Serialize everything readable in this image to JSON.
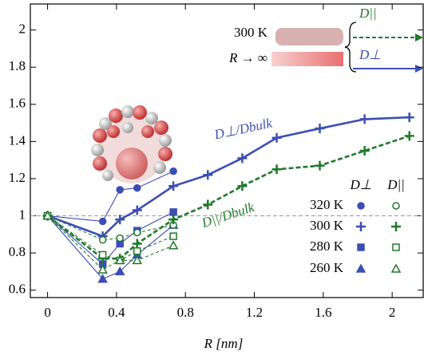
{
  "chart_data": {
    "type": "line",
    "x_label": "R [nm]",
    "xlim": [
      -0.1,
      2.18
    ],
    "ylim": [
      0.56,
      2.14
    ],
    "xticks": [
      0,
      0.4,
      0.8,
      1.2,
      1.6,
      2
    ],
    "yticks": [
      0.6,
      0.8,
      1,
      1.2,
      1.4,
      1.6,
      1.8,
      2
    ],
    "reference_line": 1,
    "legend": {
      "columns": [
        "D⊥",
        "D||"
      ],
      "rows": [
        "320 K",
        "300 K",
        "280 K",
        "260 K"
      ]
    },
    "annotations": {
      "perp": "D⊥/Dbulk",
      "par": "D||/Dbulk",
      "temperature": "300 K",
      "limit": "R → ∞",
      "inset_par": "D||",
      "inset_perp": "D⊥"
    },
    "series": [
      {
        "color": "#3b4fb3",
        "marker": "circle",
        "filled": true,
        "dashed": false,
        "thick": false,
        "x": [
          0,
          0.32,
          0.42,
          0.52,
          0.73
        ],
        "values": [
          1,
          0.97,
          1.14,
          1.15,
          1.24
        ]
      },
      {
        "color": "#3b4fb3",
        "marker": "plus",
        "filled": true,
        "dashed": false,
        "thick": true,
        "x": [
          0,
          0.32,
          0.42,
          0.52,
          0.73,
          0.93,
          1.13,
          1.33,
          1.58,
          1.84,
          2.1
        ],
        "values": [
          1,
          0.89,
          0.98,
          1.03,
          1.16,
          1.22,
          1.31,
          1.42,
          1.47,
          1.52,
          1.53
        ]
      },
      {
        "color": "#3b4fb3",
        "marker": "square",
        "filled": true,
        "dashed": false,
        "thick": false,
        "x": [
          0,
          0.32,
          0.42,
          0.52,
          0.73
        ],
        "values": [
          1,
          0.74,
          0.85,
          0.92,
          1.02
        ]
      },
      {
        "color": "#3b4fb3",
        "marker": "triangle",
        "filled": true,
        "dashed": false,
        "thick": false,
        "x": [
          0,
          0.32,
          0.42,
          0.52,
          0.73
        ],
        "values": [
          1,
          0.66,
          0.7,
          0.79,
          0.95
        ]
      },
      {
        "color": "#1f7a2a",
        "marker": "circle",
        "filled": false,
        "dashed": true,
        "thick": false,
        "x": [
          0,
          0.32,
          0.42,
          0.52,
          0.73
        ],
        "values": [
          1,
          0.87,
          0.88,
          0.91,
          0.95
        ]
      },
      {
        "color": "#1f7a2a",
        "marker": "plus",
        "filled": false,
        "dashed": true,
        "thick": true,
        "x": [
          0,
          0.32,
          0.42,
          0.52,
          0.73,
          0.93,
          1.13,
          1.33,
          1.58,
          1.84,
          2.1
        ],
        "values": [
          1,
          0.77,
          0.77,
          0.85,
          0.98,
          1.06,
          1.16,
          1.25,
          1.27,
          1.35,
          1.43
        ]
      },
      {
        "color": "#1f7a2a",
        "marker": "square",
        "filled": false,
        "dashed": true,
        "thick": false,
        "x": [
          0,
          0.32,
          0.42,
          0.52,
          0.73
        ],
        "values": [
          1,
          0.79,
          0.76,
          0.81,
          0.89
        ]
      },
      {
        "color": "#1f7a2a",
        "marker": "triangle",
        "filled": false,
        "dashed": true,
        "thick": false,
        "x": [
          0,
          0.32,
          0.42,
          0.52,
          0.73
        ],
        "values": [
          1,
          0.71,
          0.76,
          0.76,
          0.84
        ]
      }
    ]
  }
}
